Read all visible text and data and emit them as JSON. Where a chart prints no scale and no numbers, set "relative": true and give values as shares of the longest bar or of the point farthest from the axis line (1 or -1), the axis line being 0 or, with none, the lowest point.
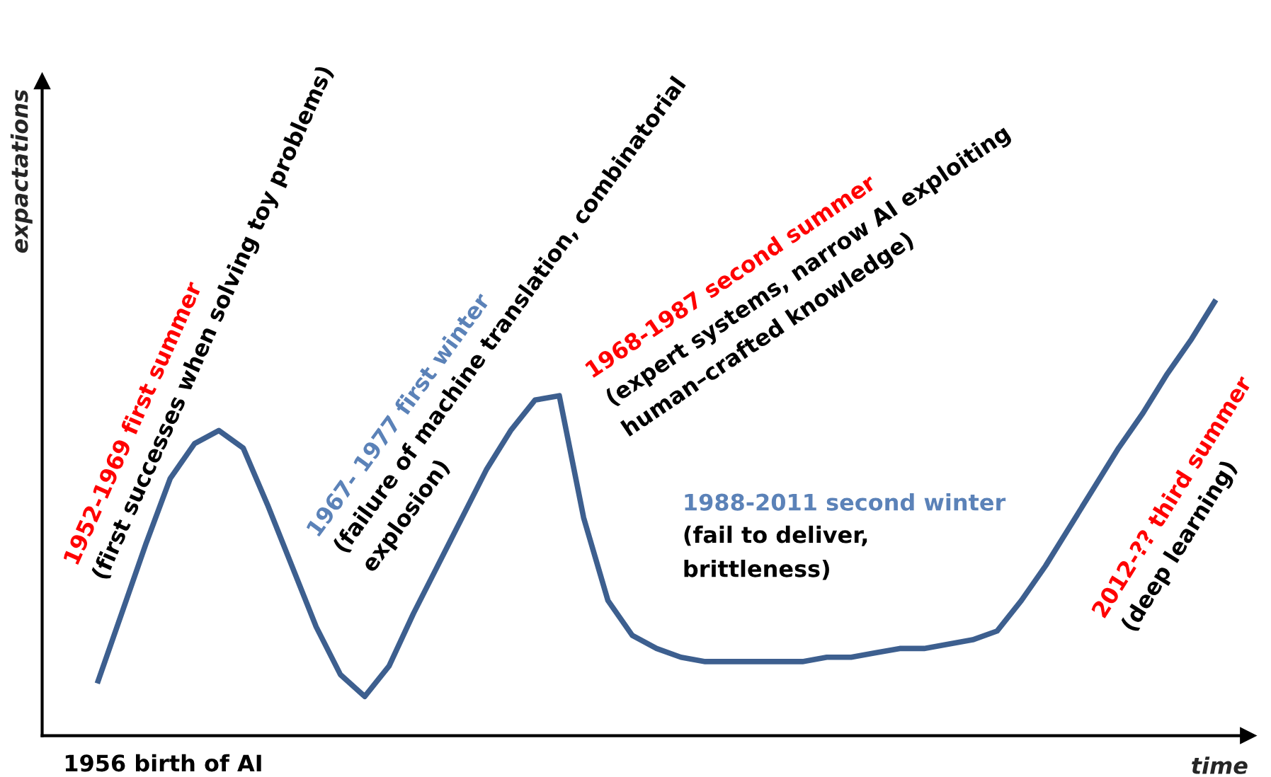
{
  "chart_data": {
    "type": "line",
    "relative": true,
    "xlabel": "time",
    "ylabel": "expactations",
    "categories": [
      null,
      null,
      null,
      null,
      null,
      null,
      null,
      null,
      null,
      null,
      null,
      null,
      null,
      null,
      null,
      null,
      null,
      null,
      null,
      null,
      null,
      null,
      null,
      null,
      null,
      null,
      null,
      null,
      null,
      null,
      null,
      null,
      null,
      null,
      null,
      null,
      null,
      null,
      null,
      null,
      null,
      null,
      null,
      null,
      null,
      null,
      null
    ],
    "series": [
      {
        "color": "#3d5f8f",
        "values": [
          0.12,
          0.28,
          0.44,
          0.59,
          0.67,
          0.7,
          0.66,
          0.53,
          0.39,
          0.25,
          0.14,
          0.09,
          0.16,
          0.28,
          0.39,
          0.5,
          0.61,
          0.7,
          0.77,
          0.78,
          0.5,
          0.31,
          0.23,
          0.2,
          0.18,
          0.17,
          0.17,
          0.17,
          0.17,
          0.17,
          0.18,
          0.18,
          0.19,
          0.2,
          0.2,
          0.21,
          0.22,
          0.24,
          0.31,
          0.39,
          0.48,
          0.57,
          0.66,
          0.74,
          0.83,
          0.91,
          1.0
        ]
      }
    ],
    "grid": false,
    "legend": false,
    "marker": "none",
    "line_style": "solid",
    "annotations": [
      "1952-1969 first summer",
      "(first successes when solving toy problems)",
      "1967- 1977 first winter",
      "(failure of machine translation, combinatorial",
      "explosion)",
      "1968-1987 second summer",
      "(expert systems, narrow AI exploiting",
      "human–crafted knowledge)",
      "1988-2011 second winter",
      "(fail to deliver,",
      "brittleness)",
      "2012-?? third summer",
      "(deep learning)",
      "1956 birth of AI"
    ]
  }
}
